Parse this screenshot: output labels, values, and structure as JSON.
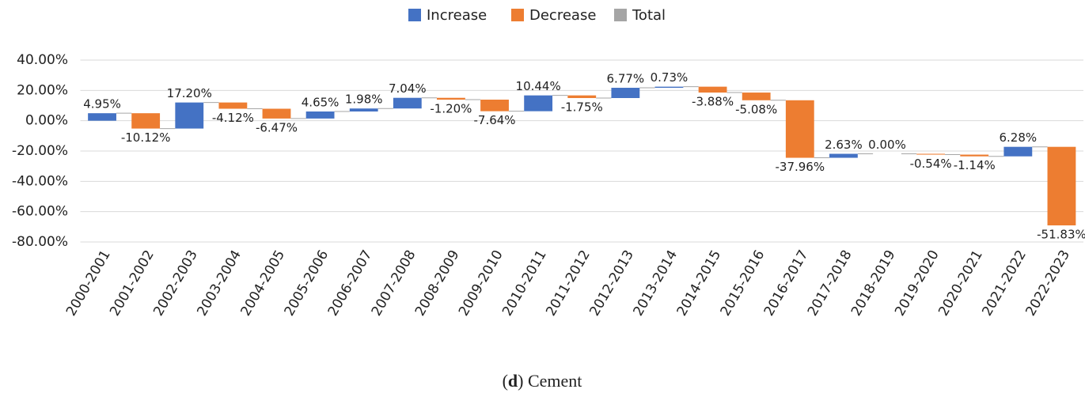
{
  "chart_data": {
    "type": "waterfall",
    "legend": [
      {
        "name": "Increase",
        "color": "#4472c4"
      },
      {
        "name": "Decrease",
        "color": "#ed7d31"
      },
      {
        "name": "Total",
        "color": "#a5a5a5"
      }
    ],
    "categories": [
      "2000-2001",
      "2001-2002",
      "2002-2003",
      "2003-2004",
      "2004-2005",
      "2005-2006",
      "2006-2007",
      "2007-2008",
      "2008-2009",
      "2009-2010",
      "2010-2011",
      "2011-2012",
      "2012-2013",
      "2013-2014",
      "2014-2015",
      "2015-2016",
      "2016-2017",
      "2017-2018",
      "2018-2019",
      "2019-2020",
      "2020-2021",
      "2021-2022",
      "2022-2023"
    ],
    "values": [
      4.95,
      -10.12,
      17.2,
      -4.12,
      -6.47,
      4.65,
      1.98,
      7.04,
      -1.2,
      -7.64,
      10.44,
      -1.75,
      6.77,
      0.73,
      -3.88,
      -5.08,
      -37.96,
      2.63,
      0.0,
      -0.54,
      -1.14,
      6.28,
      -51.83
    ],
    "value_labels": [
      "4.95%",
      "-10.12%",
      "17.20%",
      "-4.12%",
      "-6.47%",
      "4.65%",
      "1.98%",
      "7.04%",
      "-1.20%",
      "-7.64%",
      "10.44%",
      "-1.75%",
      "6.77%",
      "0.73%",
      "-3.88%",
      "-5.08%",
      "-37.96%",
      "2.63%",
      "0.00%",
      "-0.54%",
      "-1.14%",
      "6.28%",
      "-51.83%"
    ],
    "ylim": [
      -80,
      40
    ],
    "yticks": [
      {
        "value": -80,
        "label": "-80.00%"
      },
      {
        "value": -60,
        "label": "-60.00%"
      },
      {
        "value": -40,
        "label": "-40.00%"
      },
      {
        "value": -20,
        "label": "-20.00%"
      },
      {
        "value": 0,
        "label": "0.00%"
      },
      {
        "value": 20,
        "label": "20.00%"
      },
      {
        "value": 40,
        "label": "40.00%"
      }
    ],
    "grid": true,
    "legend_position": "top",
    "caption": [
      "(",
      "d",
      ") Cement"
    ]
  }
}
